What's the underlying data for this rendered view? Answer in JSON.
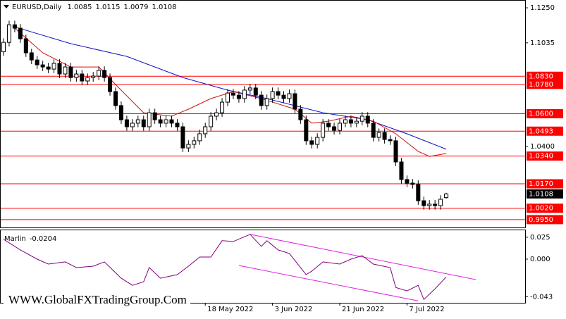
{
  "chart_data": [
    {
      "type": "candlestick",
      "title": "EURUSD,Daily",
      "xlim": [
        -0.63,
        93.08
      ],
      "ylim": [
        0.9902,
        1.1298
      ],
      "yticks": [
        {
          "value": 1.125,
          "label": "1.1250"
        },
        1.1035,
        {
          "value": 1.04,
          "label": "1.0400"
        }
      ],
      "bull_color": "#ffffff",
      "bear_color": "#000000",
      "open": [
        1.098,
        1.1038,
        1.1146,
        1.1125,
        1.106,
        1.0974,
        1.093,
        1.09,
        1.0887,
        1.0874,
        1.0909,
        1.0844,
        1.0887,
        1.0822,
        1.0844,
        1.0801,
        1.0822,
        1.0831,
        1.0866,
        1.0822,
        1.0736,
        1.065,
        1.0563,
        1.052,
        1.0542,
        1.0563,
        1.052,
        1.0606,
        1.0563,
        1.0542,
        1.0563,
        1.0542,
        1.052,
        1.039,
        1.0412,
        1.0434,
        1.0477,
        1.052,
        1.0585,
        1.0606,
        1.0671,
        1.0727,
        1.0714,
        1.0693,
        1.0745,
        1.0758,
        1.0714,
        1.065,
        1.0693,
        1.0736,
        1.0714,
        1.0693,
        1.0723,
        1.0628,
        1.0563,
        1.0434,
        1.0412,
        1.0455,
        1.0542,
        1.052,
        1.0498,
        1.0542,
        1.0563,
        1.0542,
        1.0554,
        1.0585,
        1.0542,
        1.0455,
        1.0485,
        1.0442,
        1.0434,
        1.0304,
        1.0196,
        1.0174,
        1.0166,
        1.0066,
        1.0036,
        1.0045,
        1.0036,
        1.0085
      ],
      "high": [
        1.1063,
        1.1171,
        1.1171,
        1.115,
        1.1085,
        1.0999,
        1.0955,
        1.0925,
        1.0912,
        1.0934,
        1.0934,
        1.0912,
        1.0912,
        1.0869,
        1.0869,
        1.0847,
        1.0856,
        1.0891,
        1.0891,
        1.0847,
        1.0761,
        1.0675,
        1.0588,
        1.0567,
        1.0588,
        1.0588,
        1.0631,
        1.0631,
        1.0588,
        1.0588,
        1.0588,
        1.0567,
        1.0545,
        1.0437,
        1.0459,
        1.0502,
        1.0545,
        1.061,
        1.0631,
        1.0696,
        1.0752,
        1.0752,
        1.0739,
        1.077,
        1.0783,
        1.0783,
        1.0739,
        1.0718,
        1.0761,
        1.0761,
        1.0739,
        1.0748,
        1.0748,
        1.0653,
        1.0588,
        1.0459,
        1.048,
        1.0567,
        1.0567,
        1.0545,
        1.0567,
        1.0588,
        1.0588,
        1.0579,
        1.061,
        1.061,
        1.0567,
        1.051,
        1.051,
        1.0467,
        1.0459,
        1.0329,
        1.0221,
        1.0199,
        1.0191,
        1.0091,
        1.007,
        1.007,
        1.01,
        1.0115
      ],
      "low": [
        1.0955,
        1.1013,
        1.11,
        1.1035,
        1.0949,
        1.0905,
        1.0875,
        1.0862,
        1.0849,
        1.0849,
        1.0819,
        1.0819,
        1.0797,
        1.0797,
        1.0776,
        1.0776,
        1.0797,
        1.0806,
        1.0797,
        1.0711,
        1.0625,
        1.0538,
        1.0495,
        1.0495,
        1.0517,
        1.0495,
        1.0495,
        1.0538,
        1.0517,
        1.0517,
        1.0517,
        1.0495,
        1.0365,
        1.0365,
        1.0387,
        1.0409,
        1.0452,
        1.0495,
        1.056,
        1.0581,
        1.0646,
        1.0689,
        1.0668,
        1.0668,
        1.072,
        1.0689,
        1.0625,
        1.0625,
        1.0668,
        1.0689,
        1.0668,
        1.0668,
        1.0603,
        1.0538,
        1.0409,
        1.0387,
        1.0387,
        1.043,
        1.0495,
        1.0473,
        1.0473,
        1.0517,
        1.0517,
        1.0517,
        1.0529,
        1.0517,
        1.043,
        1.043,
        1.0417,
        1.0409,
        1.0279,
        1.0171,
        1.0149,
        1.0141,
        1.0041,
        1.0011,
        1.0011,
        1.0011,
        1.0011,
        1.0079
      ],
      "close": [
        1.1038,
        1.1146,
        1.1125,
        1.106,
        1.0974,
        1.093,
        1.09,
        1.0887,
        1.0874,
        1.0909,
        1.0844,
        1.0887,
        1.0822,
        1.0844,
        1.0801,
        1.0822,
        1.0831,
        1.0866,
        1.0822,
        1.0736,
        1.065,
        1.0563,
        1.052,
        1.0542,
        1.0563,
        1.052,
        1.0606,
        1.0563,
        1.0542,
        1.0563,
        1.0542,
        1.052,
        1.039,
        1.0412,
        1.0434,
        1.0477,
        1.052,
        1.0585,
        1.0606,
        1.0671,
        1.0727,
        1.0714,
        1.0693,
        1.0745,
        1.0758,
        1.0714,
        1.065,
        1.0693,
        1.0736,
        1.0714,
        1.0693,
        1.0723,
        1.0628,
        1.0563,
        1.0434,
        1.0412,
        1.0455,
        1.0542,
        1.052,
        1.0498,
        1.0542,
        1.0563,
        1.0542,
        1.0554,
        1.0585,
        1.0542,
        1.0455,
        1.0485,
        1.0442,
        1.0434,
        1.0304,
        1.0196,
        1.0174,
        1.0166,
        1.0066,
        1.0036,
        1.0045,
        1.0036,
        1.0075,
        1.0108
      ],
      "lines": [
        {
          "color": "#1010c8",
          "x": [
            2,
            12,
            22,
            32,
            40,
            47,
            57,
            65,
            72,
            79
          ],
          "values": [
            1.1133,
            1.103,
            1.0952,
            1.0822,
            1.0745,
            1.0693,
            1.0606,
            1.0563,
            1.0477,
            1.0382
          ]
        },
        {
          "color": "#d01010",
          "x": [
            2,
            7,
            12,
            17,
            20,
            25,
            30,
            33,
            37,
            41,
            46,
            52,
            55,
            58,
            62,
            66,
            70,
            74,
            76,
            79
          ],
          "values": [
            1.1125,
            1.0974,
            1.0887,
            1.0887,
            1.0779,
            1.0606,
            1.0585,
            1.0628,
            1.0693,
            1.0736,
            1.0693,
            1.0628,
            1.0542,
            1.0554,
            1.0585,
            1.0554,
            1.0477,
            1.0369,
            1.0338,
            1.0356
          ]
        }
      ],
      "level_color": "#ff0000",
      "levels": [
        {
          "value": 1.083,
          "label": "1.0830"
        },
        {
          "value": 1.078,
          "label": "1.0780"
        },
        {
          "value": 1.06,
          "label": "1.0600"
        },
        1.0493,
        {
          "value": 1.034,
          "label": "1.0340"
        },
        {
          "value": 1.017,
          "label": "1.0170"
        },
        {
          "value": 1.002,
          "label": "1.0020"
        },
        {
          "value": 0.995,
          "label": "0.9950"
        }
      ]
    },
    {
      "type": "line",
      "title": "Marlin",
      "color": "#800080",
      "xlim": [
        -0.63,
        93.08
      ],
      "ylim": [
        -0.05,
        0.033
      ],
      "yticks": [
        0.025,
        {
          "value": 0,
          "label": "0.000"
        },
        -0.043
      ],
      "xticks": [
        {
          "value": 36,
          "label": "18 May 2022"
        },
        {
          "value": 48,
          "label": "3 Jun 2022"
        },
        {
          "value": 60,
          "label": "21 Jun 2022"
        },
        {
          "value": 72,
          "label": "7 Jul 2022"
        }
      ],
      "x": [
        0,
        3,
        6,
        8,
        11,
        13,
        16,
        18,
        21,
        23,
        25,
        26,
        28,
        31,
        33,
        35,
        37,
        39,
        41,
        44,
        46,
        47,
        49,
        51,
        54,
        55,
        57,
        60,
        62,
        64,
        66,
        69,
        70,
        72,
        74,
        75,
        77,
        79
      ],
      "values": [
        0.0227,
        0.0105,
        0,
        -0.0057,
        -0.0032,
        -0.0097,
        -0.0081,
        -0.0032,
        -0.0219,
        -0.03,
        -0.0259,
        -0.0097,
        -0.0219,
        -0.0178,
        -0.0081,
        0.0024,
        0.0024,
        0.0211,
        0.0202,
        0.0283,
        0.0146,
        0.0211,
        0.0105,
        0.0065,
        -0.0178,
        -0.0138,
        -0.0032,
        -0.0057,
        0,
        0.004,
        -0.0057,
        -0.0097,
        -0.0324,
        -0.0364,
        -0.03,
        -0.0462,
        -0.034,
        -0.0204
      ],
      "trendlines": [
        {
          "color": "#e020e0",
          "x": [
            44,
            84.3
          ],
          "values": [
            0.0283,
            -0.0235
          ]
        },
        {
          "color": "#e020e0",
          "x": [
            42,
            74
          ],
          "values": [
            -0.0073,
            -0.0478
          ]
        }
      ]
    }
  ],
  "watermark": "WWW.GlobalFXTradingGroup.Com"
}
